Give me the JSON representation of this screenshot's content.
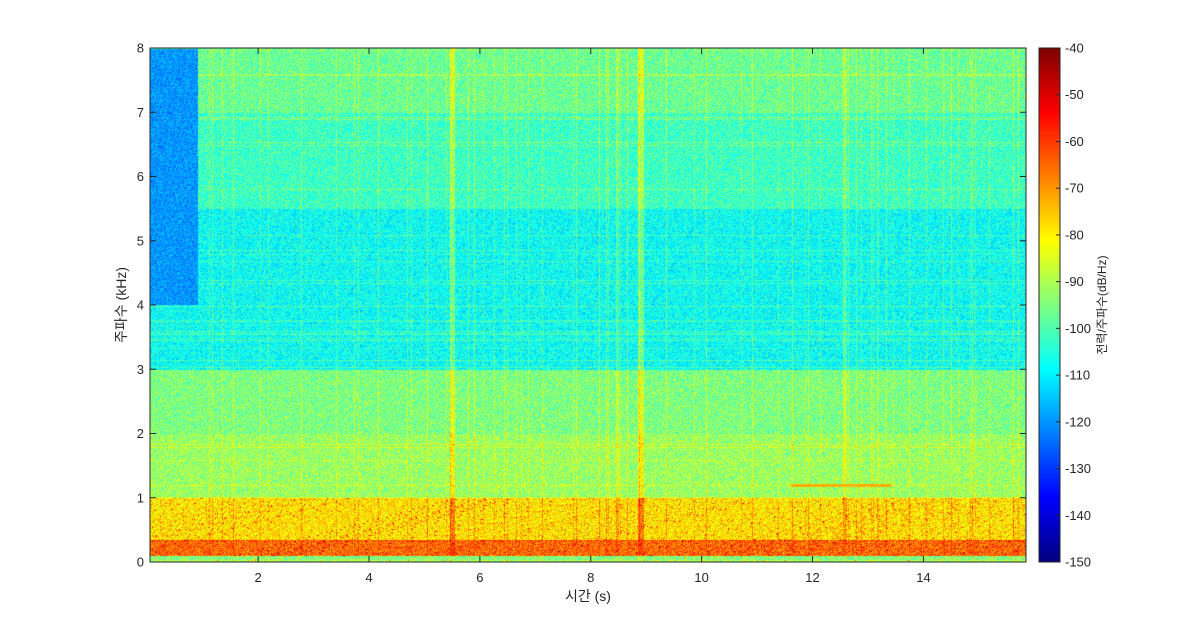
{
  "chart_data": {
    "type": "heatmap",
    "subtype": "spectrogram",
    "title": "",
    "xlabel": "시간 (s)",
    "ylabel": "주파수 (kHz)",
    "xlim": [
      0.05,
      15.85
    ],
    "ylim": [
      0,
      8
    ],
    "xticks": [
      2,
      4,
      6,
      8,
      10,
      12,
      14
    ],
    "yticks": [
      0,
      1,
      2,
      3,
      4,
      5,
      6,
      7,
      8
    ],
    "colorbar": {
      "label": "전력/주파수(dB/Hz)",
      "colormap": "jet",
      "clim": [
        -150,
        -40
      ],
      "ticks": [
        -40,
        -50,
        -60,
        -70,
        -80,
        -90,
        -100,
        -110,
        -120,
        -130,
        -140,
        -150
      ]
    },
    "grid": false,
    "frequency_band_levels_db": [
      {
        "band_khz": [
          0.0,
          0.1
        ],
        "level": -95
      },
      {
        "band_khz": [
          0.1,
          0.35
        ],
        "level": -65
      },
      {
        "band_khz": [
          0.35,
          1.0
        ],
        "level": -78
      },
      {
        "band_khz": [
          1.0,
          2.0
        ],
        "level": -92
      },
      {
        "band_khz": [
          2.0,
          3.0
        ],
        "level": -95
      },
      {
        "band_khz": [
          3.0,
          5.5
        ],
        "level": -108
      },
      {
        "band_khz": [
          5.5,
          7.0
        ],
        "level": -102
      },
      {
        "band_khz": [
          7.0,
          8.0
        ],
        "level": -97
      }
    ],
    "notable_events": [
      {
        "time_s": 0.6,
        "description": "low-energy region 4–8 kHz",
        "level": -120
      },
      {
        "time_s": 5.5,
        "description": "broadband vertical stripe",
        "level": -85
      },
      {
        "time_s": 8.9,
        "description": "broadband vertical stripe",
        "level": -82
      },
      {
        "time_s": 12.5,
        "description": "tonal line near 1.2 kHz",
        "level": -75
      }
    ]
  }
}
